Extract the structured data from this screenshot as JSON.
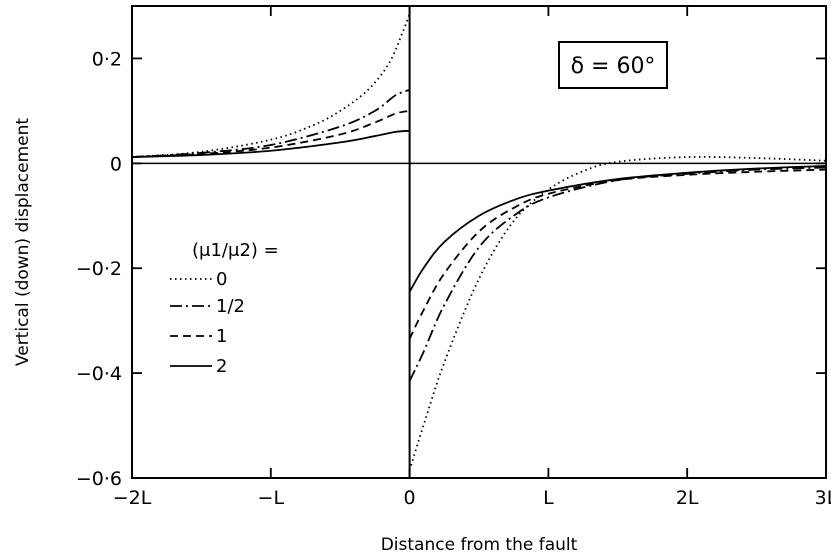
{
  "chart_data": {
    "type": "line",
    "title": "",
    "xlabel": "Distance from the fault",
    "ylabel": "Vertical (down) displacement",
    "xlim": [
      -2,
      3
    ],
    "ylim": [
      -0.6,
      0.3
    ],
    "x_tick_labels": [
      "−2L",
      "−L",
      "0",
      "L",
      "2L",
      "3L"
    ],
    "x_tick_values": [
      -2,
      -1,
      0,
      1,
      2,
      3
    ],
    "y_tick_labels": [
      "0·2",
      "0",
      "−0·2",
      "−0·4",
      "−0·6"
    ],
    "y_tick_values": [
      0.2,
      0,
      -0.2,
      -0.4,
      -0.6
    ],
    "annotation": "δ = 60°",
    "legend_title": "(μ1/μ2) =",
    "legend_position": "left-middle",
    "grid": false,
    "series": [
      {
        "name": "0",
        "style": "dotted",
        "left": {
          "x": [
            -2.0,
            -1.5,
            -1.0,
            -0.7,
            -0.5,
            -0.3,
            -0.15,
            -0.05,
            0.0
          ],
          "y": [
            0.012,
            0.022,
            0.045,
            0.072,
            0.1,
            0.14,
            0.19,
            0.25,
            0.285
          ]
        },
        "right": {
          "x": [
            0.0,
            0.1,
            0.25,
            0.5,
            0.75,
            1.0,
            1.25,
            1.5,
            2.0,
            2.5,
            3.0
          ],
          "y": [
            -0.585,
            -0.5,
            -0.38,
            -0.22,
            -0.11,
            -0.05,
            -0.015,
            0.003,
            0.012,
            0.01,
            0.005
          ]
        }
      },
      {
        "name": "1/2",
        "style": "dash-dot",
        "left": {
          "x": [
            -2.0,
            -1.5,
            -1.0,
            -0.5,
            -0.25,
            -0.1,
            0.0
          ],
          "y": [
            0.012,
            0.02,
            0.035,
            0.07,
            0.1,
            0.13,
            0.14
          ]
        },
        "right": {
          "x": [
            0.0,
            0.1,
            0.25,
            0.5,
            0.75,
            1.0,
            1.5,
            2.0,
            2.5,
            3.0
          ],
          "y": [
            -0.415,
            -0.36,
            -0.27,
            -0.16,
            -0.1,
            -0.065,
            -0.032,
            -0.02,
            -0.012,
            -0.008
          ]
        }
      },
      {
        "name": "1",
        "style": "dashed",
        "left": {
          "x": [
            -2.0,
            -1.5,
            -1.0,
            -0.5,
            -0.25,
            -0.1,
            0.0
          ],
          "y": [
            0.012,
            0.018,
            0.03,
            0.055,
            0.078,
            0.095,
            0.1
          ]
        },
        "right": {
          "x": [
            0.0,
            0.1,
            0.25,
            0.5,
            0.75,
            1.0,
            1.5,
            2.0,
            2.5,
            3.0
          ],
          "y": [
            -0.335,
            -0.28,
            -0.21,
            -0.13,
            -0.085,
            -0.058,
            -0.032,
            -0.022,
            -0.016,
            -0.012
          ]
        }
      },
      {
        "name": "2",
        "style": "solid",
        "left": {
          "x": [
            -2.0,
            -1.5,
            -1.0,
            -0.5,
            -0.25,
            -0.1,
            0.0
          ],
          "y": [
            0.012,
            0.016,
            0.024,
            0.04,
            0.052,
            0.06,
            0.062
          ]
        },
        "right": {
          "x": [
            0.0,
            0.1,
            0.25,
            0.5,
            0.75,
            1.0,
            1.5,
            2.0,
            2.5,
            3.0
          ],
          "y": [
            -0.245,
            -0.2,
            -0.15,
            -0.1,
            -0.07,
            -0.052,
            -0.03,
            -0.018,
            -0.01,
            -0.005
          ]
        }
      }
    ]
  }
}
